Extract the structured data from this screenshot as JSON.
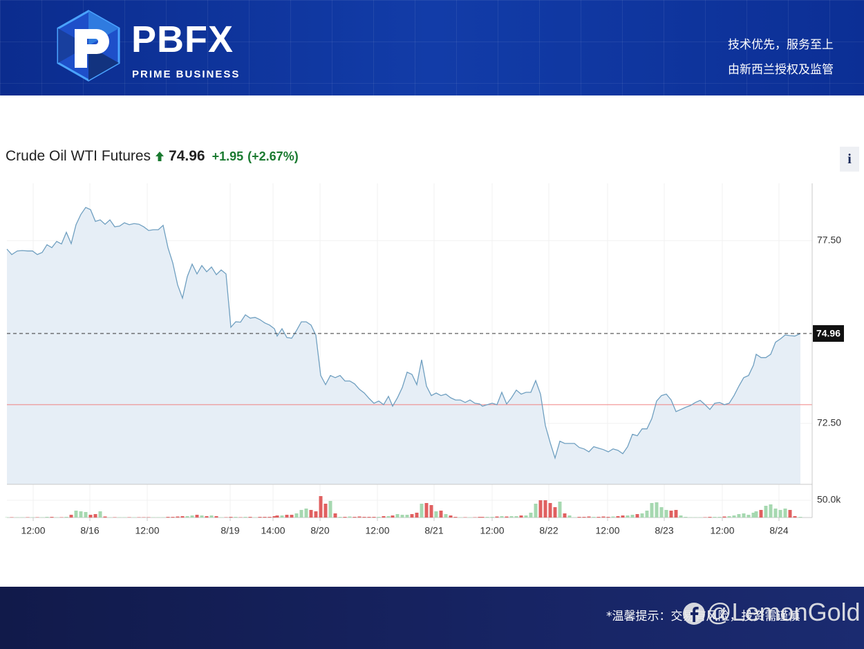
{
  "header": {
    "logo_text": "PBFX",
    "logo_sub": "PRIME BUSINESS",
    "slogan_1": "技术优先，服务至上",
    "slogan_2": "由新西兰授权及监管"
  },
  "chart_data": {
    "type": "line",
    "title": "Crude Oil WTI Futures",
    "last_price": 74.96,
    "change": "+1.95",
    "change_percent": "(+2.67%)",
    "info_button": "i",
    "previous_close": 73.01,
    "color": "#6f9fc0",
    "area_color": "#e6eef6",
    "previous_close_color": "#f08080",
    "grid": true,
    "x": [
      0,
      7,
      15,
      22,
      30,
      37,
      44,
      51,
      58,
      65,
      72,
      79,
      86,
      93,
      100,
      107,
      114,
      121,
      128,
      135,
      142,
      149,
      156,
      163,
      170,
      177,
      184,
      191,
      198,
      205,
      212,
      219,
      226,
      233,
      240,
      247,
      254,
      261,
      268,
      275,
      282,
      289,
      296,
      303,
      310,
      317,
      324,
      331,
      338,
      345,
      352,
      359,
      366,
      373,
      380,
      387,
      391,
      398,
      405,
      412,
      419,
      426,
      433,
      440,
      447,
      454,
      461,
      468,
      475,
      482,
      489,
      496,
      503,
      510,
      517,
      524,
      531,
      538,
      545,
      552,
      558,
      565,
      572,
      579,
      586,
      593,
      600,
      607,
      614,
      621,
      628,
      635,
      642,
      649,
      656,
      663,
      670,
      677,
      684,
      688,
      695,
      702,
      709,
      716,
      723,
      730,
      737,
      744,
      751,
      758,
      765,
      772,
      779,
      786,
      793,
      800,
      807,
      814,
      821,
      828,
      835,
      842,
      849,
      856,
      863,
      870,
      877,
      884,
      891,
      898,
      905,
      912,
      919,
      926,
      933,
      940,
      947,
      954,
      961,
      968,
      975,
      982,
      989,
      996,
      1003,
      1010,
      1017,
      1024,
      1031,
      1038,
      1045,
      1052,
      1059,
      1066,
      1073,
      1080,
      1084,
      1091,
      1098,
      1105,
      1112,
      1119,
      1126,
      1133,
      1140,
      1148
    ],
    "values": [
      77.27,
      77.12,
      77.22,
      77.23,
      77.22,
      77.22,
      77.12,
      77.18,
      77.39,
      77.31,
      77.48,
      77.41,
      77.73,
      77.42,
      77.94,
      78.22,
      78.41,
      78.35,
      78.03,
      78.07,
      77.95,
      78.07,
      77.88,
      77.9,
      77.99,
      77.94,
      77.97,
      77.95,
      77.88,
      77.78,
      77.8,
      77.8,
      77.92,
      77.31,
      76.89,
      76.29,
      75.93,
      76.52,
      76.86,
      76.59,
      76.82,
      76.65,
      76.78,
      76.57,
      76.7,
      76.59,
      75.13,
      75.28,
      75.27,
      75.47,
      75.38,
      75.4,
      75.34,
      75.25,
      75.19,
      75.09,
      74.89,
      75.09,
      74.85,
      74.83,
      75.04,
      75.28,
      75.28,
      75.19,
      74.91,
      73.81,
      73.56,
      73.81,
      73.75,
      73.81,
      73.66,
      73.66,
      73.58,
      73.43,
      73.33,
      73.18,
      73.05,
      73.11,
      73.01,
      73.24,
      72.97,
      73.2,
      73.48,
      73.9,
      73.84,
      73.56,
      74.24,
      73.52,
      73.26,
      73.33,
      73.26,
      73.3,
      73.2,
      73.14,
      73.14,
      73.07,
      73.14,
      73.05,
      73.03,
      72.97,
      73.01,
      73.05,
      73.01,
      73.35,
      73.03,
      73.2,
      73.41,
      73.3,
      73.35,
      73.35,
      73.67,
      73.3,
      72.44,
      71.97,
      71.55,
      72.01,
      71.95,
      71.95,
      71.95,
      71.84,
      71.8,
      71.72,
      71.86,
      71.82,
      71.78,
      71.72,
      71.8,
      71.76,
      71.67,
      71.86,
      72.2,
      72.16,
      72.35,
      72.35,
      72.63,
      73.11,
      73.26,
      73.3,
      73.14,
      72.82,
      72.88,
      72.94,
      72.99,
      73.07,
      73.13,
      73.01,
      72.88,
      73.05,
      73.07,
      73.01,
      73.05,
      73.26,
      73.52,
      73.75,
      73.81,
      74.09,
      74.39,
      74.3,
      74.3,
      74.39,
      74.72,
      74.81,
      74.92,
      74.9,
      74.89,
      74.96
    ],
    "xlim": [
      0,
      1165
    ],
    "xticks": [
      {
        "value": 38,
        "label": "12:00"
      },
      {
        "value": 120,
        "label": "8/16"
      },
      {
        "value": 203,
        "label": "12:00"
      },
      {
        "value": 323,
        "label": "8/19"
      },
      {
        "value": 385,
        "label": "14:00"
      },
      {
        "value": 453,
        "label": "8/20"
      },
      {
        "value": 536,
        "label": "12:00"
      },
      {
        "value": 618,
        "label": "8/21"
      },
      {
        "value": 702,
        "label": "12:00"
      },
      {
        "value": 784,
        "label": "8/22"
      },
      {
        "value": 869,
        "label": "12:00"
      },
      {
        "value": 951,
        "label": "8/23"
      },
      {
        "value": 1035,
        "label": "12:00"
      },
      {
        "value": 1117,
        "label": "8/24"
      }
    ],
    "ylim": [
      70.83,
      79.07
    ],
    "yticks": [
      {
        "value": 72.5,
        "label": "72.50"
      },
      {
        "value": 77.5,
        "label": "77.50"
      }
    ],
    "volume": {
      "up_color": "#a6d8b0",
      "down_color": "#e06060",
      "ylim": [
        0,
        90000
      ],
      "yticks": [
        {
          "value": 50000,
          "label": "50.0k"
        }
      ],
      "values": [
        1000,
        1000,
        1000,
        1000,
        1000,
        1000,
        1000,
        1000,
        2000,
        2000,
        1000,
        1000,
        2000,
        8000,
        20000,
        18000,
        16000,
        8000,
        10000,
        18000,
        3000,
        1000,
        1000,
        1000,
        1000,
        1000,
        1000,
        1000,
        1000,
        1000,
        1000,
        1000,
        1000,
        2000,
        2000,
        3000,
        4000,
        4000,
        6000,
        8000,
        6000,
        4000,
        6000,
        4000,
        1000,
        1000,
        2000,
        2000,
        1000,
        2000,
        2000,
        1000,
        2000,
        2000,
        2000,
        4000,
        6000,
        6000,
        8000,
        8000,
        12000,
        22000,
        26000,
        22000,
        18000,
        62000,
        40000,
        48000,
        12000,
        2000,
        2000,
        3000,
        2000,
        3000,
        2000,
        2000,
        2000,
        2000,
        4000,
        4000,
        6000,
        10000,
        8000,
        8000,
        10000,
        14000,
        40000,
        42000,
        36000,
        18000,
        20000,
        10000,
        6000,
        2000,
        1000,
        1000,
        1000,
        1000,
        2000,
        2000,
        2000,
        2000,
        3000,
        4000,
        3000,
        4000,
        4000,
        6000,
        6000,
        14000,
        40000,
        50000,
        50000,
        42000,
        30000,
        46000,
        12000,
        6000,
        1000,
        2000,
        2000,
        3000,
        2000,
        2000,
        3000,
        2000,
        3000,
        4000,
        6000,
        6000,
        8000,
        10000,
        12000,
        20000,
        42000,
        44000,
        30000,
        22000,
        20000,
        22000,
        6000,
        2000,
        1000,
        1000,
        1000,
        1000,
        2000,
        2000,
        2000,
        3000,
        4000,
        6000,
        10000,
        12000,
        8000,
        14000,
        18000,
        22000,
        34000,
        38000,
        26000,
        22000,
        26000,
        22000,
        4000,
        2000
      ]
    }
  },
  "footer": {
    "notice": "*温馨提示：交易有风险，投资需谨慎",
    "watermark": "@LemonGold"
  }
}
